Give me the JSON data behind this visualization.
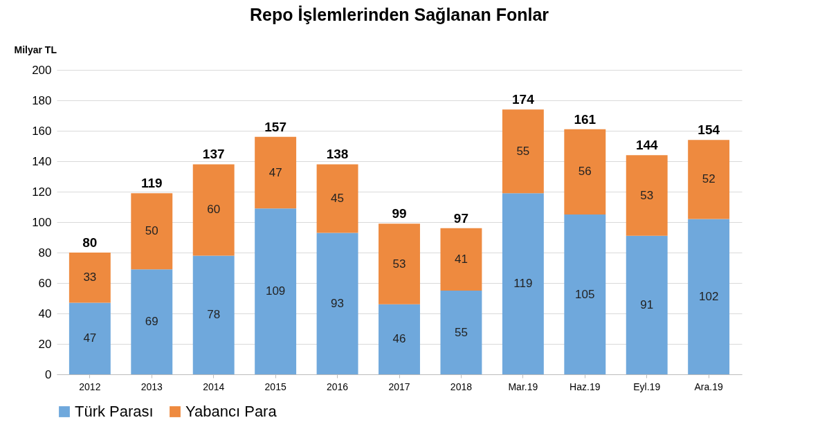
{
  "chart_data": {
    "type": "bar",
    "title": "Repo İşlemlerinden Sağlanan Fonlar",
    "ylabel": "Milyar TL",
    "categories": [
      "2012",
      "2013",
      "2014",
      "2015",
      "2016",
      "2017",
      "2018",
      "Mar.19",
      "Haz.19",
      "Eyl.19",
      "Ara.19"
    ],
    "series": [
      {
        "name": "Türk Parası",
        "color": "#6fa8dc",
        "values": [
          47,
          69,
          78,
          109,
          93,
          46,
          55,
          119,
          105,
          91,
          102
        ]
      },
      {
        "name": "Yabancı Para",
        "color": "#ee8a3f",
        "values": [
          33,
          50,
          60,
          47,
          45,
          53,
          41,
          55,
          56,
          53,
          52
        ]
      }
    ],
    "stacked": true,
    "ylim": [
      0,
      200
    ],
    "yticks": [
      0,
      20,
      40,
      60,
      80,
      100,
      120,
      140,
      160,
      180,
      200
    ],
    "grid": "y",
    "legend": "bottom",
    "data_labels": true,
    "totals": [
      "80",
      "119",
      "137",
      "157",
      "138",
      "99",
      "97",
      "174",
      "161",
      "144",
      "154"
    ]
  }
}
